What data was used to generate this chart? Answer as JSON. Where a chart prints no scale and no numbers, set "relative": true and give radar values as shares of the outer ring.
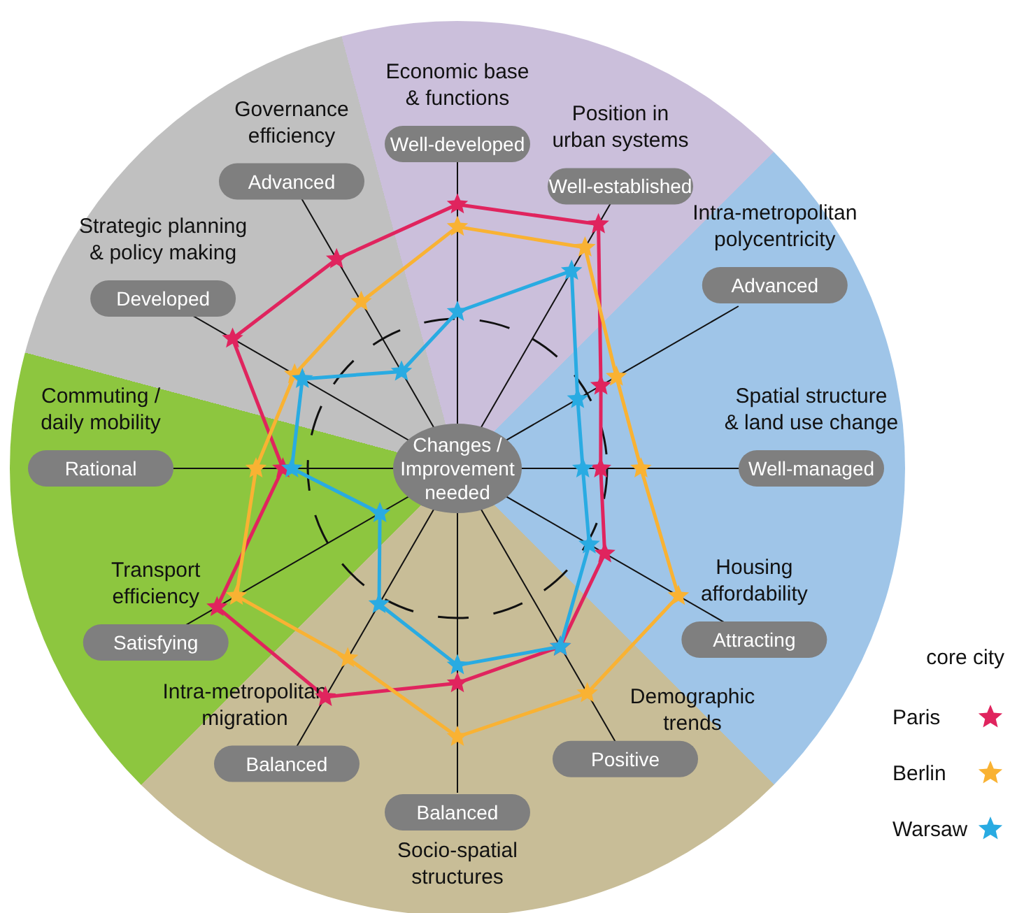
{
  "chart_data": {
    "type": "radar",
    "relative": true,
    "categories": [
      "Economic base\n& functions",
      "Position in\nurban systems",
      "Intra-metropolitan\npolycentricity",
      "Spatial structure\n& land use change",
      "Housing\naffordability",
      "Demographic\ntrends",
      "Socio-spatial\nstructures",
      "Intra-metropolitan\nmigration",
      "Transport\nefficiency",
      "Commuting /\ndaily mobility",
      "Strategic planning\n& policy making",
      "Governance\nefficiency"
    ],
    "series": [
      {
        "name": "Paris",
        "color": "#e0245e",
        "values": [
          0.59,
          0.63,
          0.37,
          0.32,
          0.38,
          0.46,
          0.48,
          0.59,
          0.62,
          0.39,
          0.58,
          0.54
        ]
      },
      {
        "name": "Berlin",
        "color": "#f9b233",
        "values": [
          0.54,
          0.57,
          0.41,
          0.41,
          0.57,
          0.58,
          0.6,
          0.49,
          0.57,
          0.45,
          0.42,
          0.43
        ]
      },
      {
        "name": "Warsaw",
        "color": "#29abe2",
        "values": [
          0.35,
          0.51,
          0.31,
          0.28,
          0.34,
          0.46,
          0.44,
          0.35,
          0.2,
          0.37,
          0.4,
          0.25
        ]
      }
    ],
    "annotations": [
      "Well-developed",
      "Well-established",
      "Advanced",
      "Well-managed",
      "Attracting",
      "Positive",
      "Balanced",
      "Balanced",
      "Satisfying",
      "Rational",
      "Developed",
      "Advanced",
      "Changes /\nImprovement\nneeded"
    ],
    "legend_title": "core city",
    "legend": "bottom right",
    "marker": "star",
    "grid": true
  }
}
